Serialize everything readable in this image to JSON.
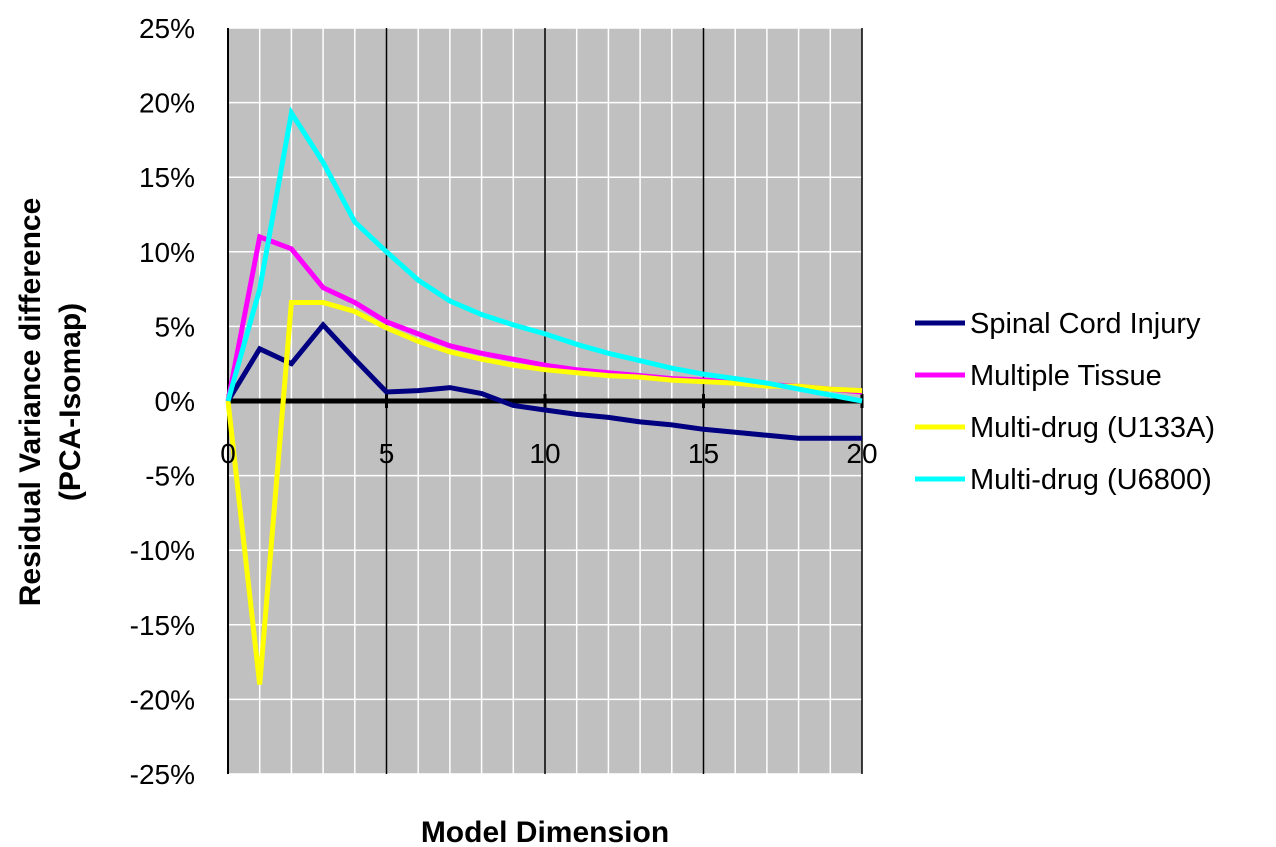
{
  "chart_data": {
    "type": "line",
    "title": "",
    "xlabel": "Model Dimension",
    "ylabel": "Residual Variance difference (PCA-Isomap)",
    "ylabel_lines": [
      "Residual Variance difference",
      "(PCA-Isomap)"
    ],
    "xlim": [
      0,
      20
    ],
    "ylim": [
      -25,
      25
    ],
    "x_ticks": [
      0,
      5,
      10,
      15,
      20
    ],
    "x_tick_labels": [
      "0",
      "5",
      "10",
      "15",
      "20"
    ],
    "y_ticks": [
      25,
      20,
      15,
      10,
      5,
      0,
      -5,
      -10,
      -15,
      -20,
      -25
    ],
    "y_tick_labels": [
      "25%",
      "20%",
      "15%",
      "10%",
      "5%",
      "0%",
      "-5%",
      "-10%",
      "-15%",
      "-20%",
      "-25%"
    ],
    "grid": true,
    "plot_background": "#c0c0c0",
    "legend_position": "right",
    "x": [
      0,
      1,
      2,
      3,
      4,
      5,
      6,
      7,
      8,
      9,
      10,
      11,
      12,
      13,
      14,
      15,
      16,
      17,
      18,
      19,
      20
    ],
    "series": [
      {
        "name": "Spinal Cord Injury",
        "color": "#000080",
        "values": [
          0,
          3.5,
          2.5,
          5.1,
          2.8,
          0.6,
          0.7,
          0.9,
          0.5,
          -0.3,
          -0.6,
          -0.9,
          -1.1,
          -1.4,
          -1.6,
          -1.9,
          -2.1,
          -2.3,
          -2.5,
          -2.5,
          -2.5
        ]
      },
      {
        "name": "Multiple Tissue",
        "color": "#ff00ff",
        "values": [
          0,
          11,
          10.2,
          7.6,
          6.6,
          5.3,
          4.5,
          3.7,
          3.2,
          2.8,
          2.4,
          2.1,
          1.9,
          1.7,
          1.5,
          1.4,
          1.3,
          1.1,
          1.0,
          0.8,
          0.6
        ]
      },
      {
        "name": "Multi-drug (U133A)",
        "color": "#ffff00",
        "values": [
          0,
          -19,
          6.6,
          6.6,
          6.0,
          4.9,
          4.0,
          3.3,
          2.8,
          2.4,
          2.1,
          1.9,
          1.7,
          1.6,
          1.4,
          1.3,
          1.2,
          1.0,
          1.0,
          0.8,
          0.7
        ]
      },
      {
        "name": "Multi-drug (U6800)",
        "color": "#00ffff",
        "values": [
          0,
          7.5,
          19.3,
          16,
          12,
          10,
          8.1,
          6.7,
          5.8,
          5.1,
          4.5,
          3.8,
          3.2,
          2.7,
          2.2,
          1.8,
          1.5,
          1.2,
          0.8,
          0.4,
          0
        ]
      }
    ]
  }
}
